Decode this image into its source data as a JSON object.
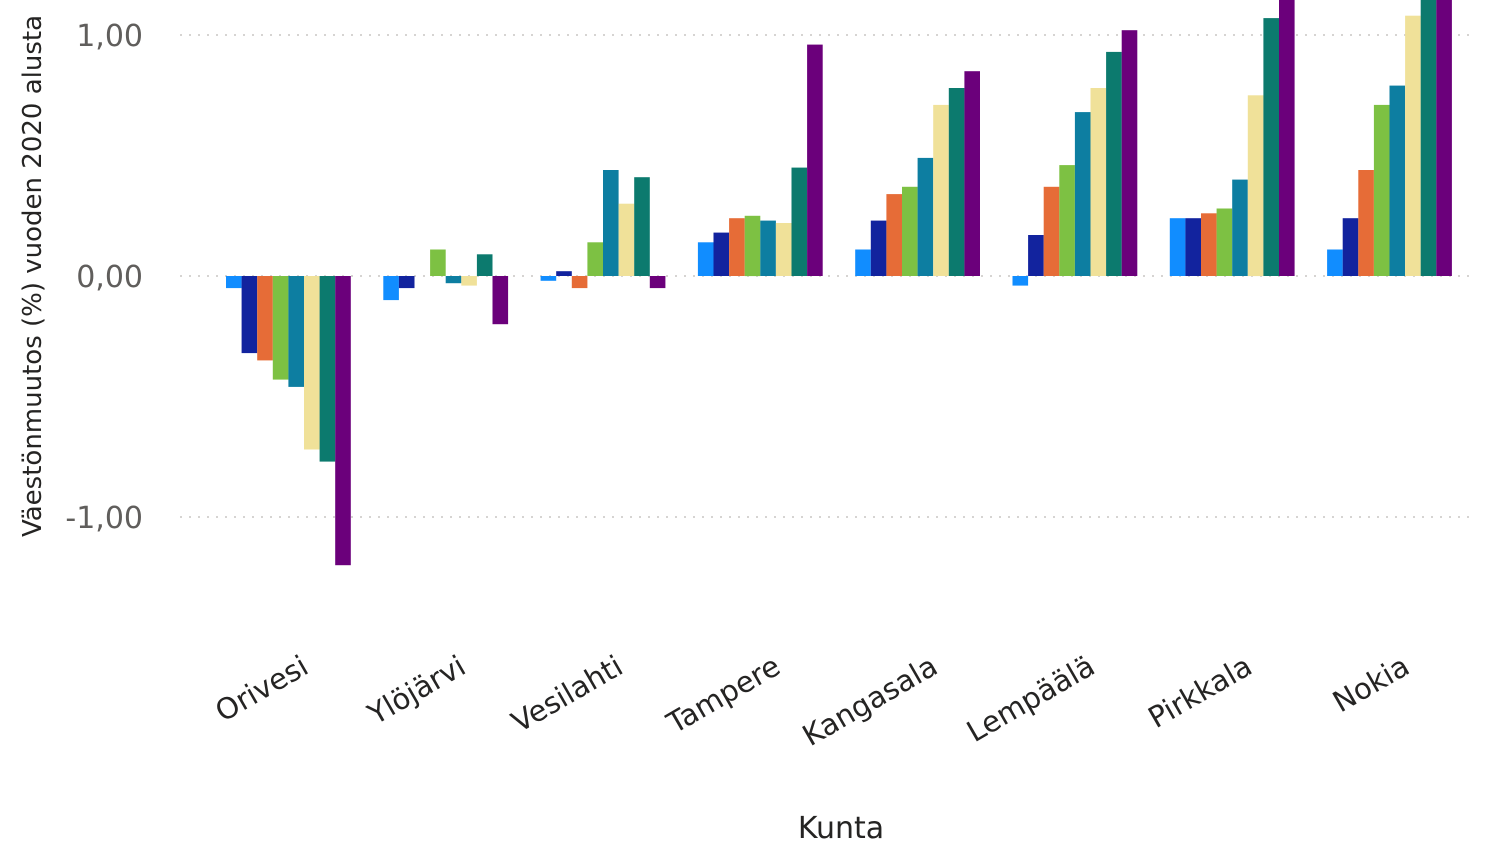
{
  "chart_data": {
    "type": "bar",
    "xlabel": "Kunta",
    "ylabel": "Väestönmuutos (%) vuoden 2020 alusta",
    "ylim": [
      -1.3,
      1.15
    ],
    "yticks": [
      -1.0,
      0.0,
      1.0
    ],
    "ytick_labels": [
      "-1,00",
      "0,00",
      "1,00"
    ],
    "grid": true,
    "categories": [
      "Orivesi",
      "Ylöjärvi",
      "Vesilahti",
      "Tampere",
      "Kangasala",
      "Lempäälä",
      "Pirkkala",
      "Nokia"
    ],
    "series": [
      {
        "color": "#118dff",
        "values": [
          -0.05,
          -0.1,
          -0.02,
          0.14,
          0.11,
          -0.04,
          0.24,
          0.11
        ]
      },
      {
        "color": "#12239e",
        "values": [
          -0.32,
          -0.05,
          0.02,
          0.18,
          0.23,
          0.17,
          0.24,
          0.24
        ]
      },
      {
        "color": "#e66c37",
        "values": [
          -0.35,
          0.0,
          -0.05,
          0.24,
          0.34,
          0.37,
          0.26,
          0.44
        ]
      },
      {
        "color": "#7dc143",
        "values": [
          -0.43,
          0.11,
          0.14,
          0.25,
          0.37,
          0.46,
          0.28,
          0.71
        ]
      },
      {
        "color": "#0d7ea1",
        "values": [
          -0.46,
          -0.03,
          0.44,
          0.23,
          0.49,
          0.68,
          0.4,
          0.79
        ]
      },
      {
        "color": "#f0e199",
        "values": [
          -0.72,
          -0.04,
          0.3,
          0.22,
          0.71,
          0.78,
          0.75,
          1.08
        ]
      },
      {
        "color": "#0c7a6e",
        "values": [
          -0.77,
          0.09,
          0.41,
          0.45,
          0.78,
          0.93,
          1.07,
          1.2
        ]
      },
      {
        "color": "#6b007b",
        "values": [
          -1.2,
          -0.2,
          -0.05,
          0.96,
          0.85,
          1.02,
          1.2,
          1.2
        ]
      }
    ]
  }
}
